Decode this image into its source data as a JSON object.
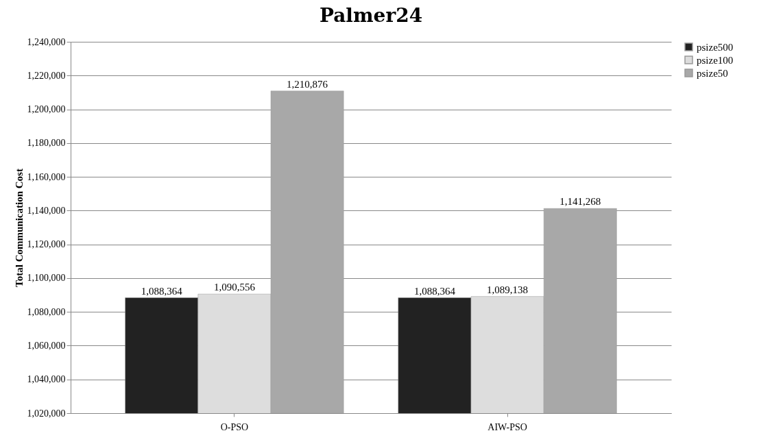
{
  "chart_data": {
    "type": "bar",
    "title": "Palmer24",
    "ylabel": "Total Communication Cost",
    "categories": [
      "O-PSO",
      "AIW-PSO"
    ],
    "series": [
      {
        "name": "psize500",
        "color": "#222222",
        "values": [
          1088364,
          1088364
        ],
        "value_labels": [
          "1,088,364",
          "1,088,364"
        ]
      },
      {
        "name": "psize100",
        "color": "#dddddd",
        "values": [
          1090556,
          1089138
        ],
        "value_labels": [
          "1,090,556",
          "1,089,138"
        ]
      },
      {
        "name": "psize50",
        "color": "#a8a8a8",
        "values": [
          1210876,
          1141268
        ],
        "value_labels": [
          "1,210,876",
          "1,141,268"
        ]
      }
    ],
    "ylim": [
      1020000,
      1240000
    ],
    "yticks": [
      {
        "value": 1020000,
        "label": "1,020,000"
      },
      {
        "value": 1040000,
        "label": "1,040,000"
      },
      {
        "value": 1060000,
        "label": "1,060,000"
      },
      {
        "value": 1080000,
        "label": "1,080,000"
      },
      {
        "value": 1100000,
        "label": "1,100,000"
      },
      {
        "value": 1120000,
        "label": "1,120,000"
      },
      {
        "value": 1140000,
        "label": "1,140,000"
      },
      {
        "value": 1160000,
        "label": "1,160,000"
      },
      {
        "value": 1180000,
        "label": "1,180,000"
      },
      {
        "value": 1200000,
        "label": "1,200,000"
      },
      {
        "value": 1220000,
        "label": "1,220,000"
      },
      {
        "value": 1240000,
        "label": "1,240,000"
      }
    ],
    "grid": "y",
    "legend": "right"
  }
}
